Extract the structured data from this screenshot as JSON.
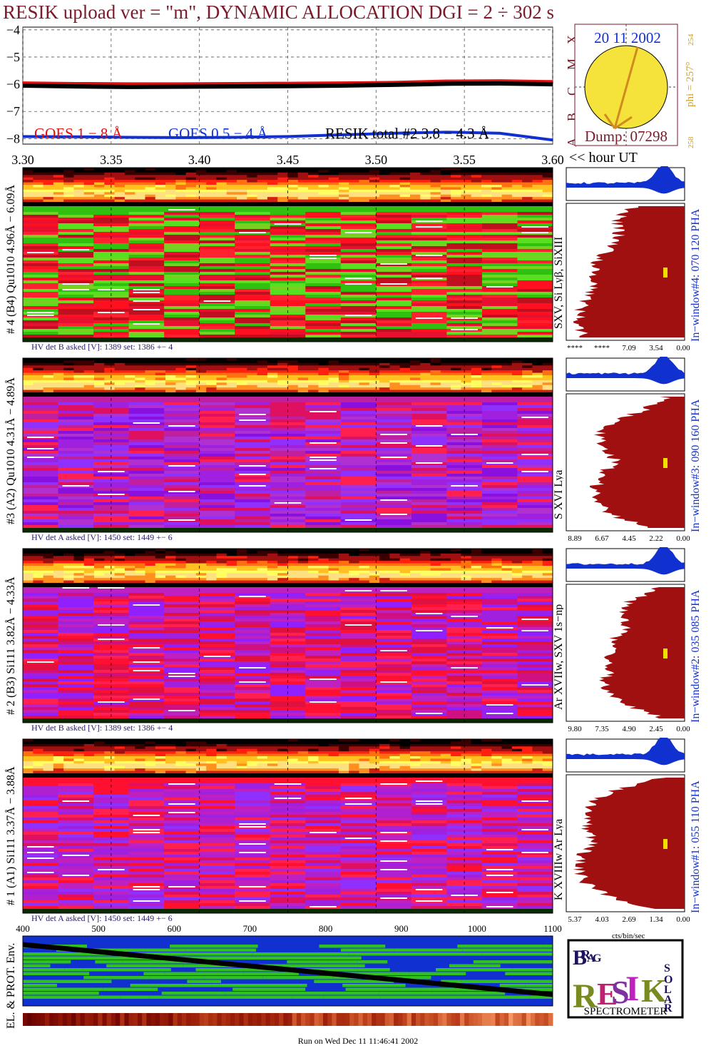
{
  "title": "RESIK upload ver = \"m\", DYNAMIC ALLOCATION  DGI =   2 ÷ 302 s",
  "colors": {
    "title": "#7a1a2a",
    "goes_long": "#e01010",
    "goes_short": "#1030d0",
    "resik_total": "#000000",
    "sun_disk": "#f5e23a",
    "sun_axis": "#d08a20",
    "hist_fill": "#a01010",
    "hist_top": "#1030d0",
    "date": "#1030d0",
    "marker": "#f0e000"
  },
  "lightcurve": {
    "y_ticks": [
      "−4",
      "−5",
      "−6",
      "−7",
      "−8"
    ],
    "x_ticks": [
      "3.30",
      "3.35",
      "3.40",
      "3.45",
      "3.50",
      "3.55",
      "3.60"
    ],
    "x_unit": "<< hour UT",
    "legend": {
      "goes_long": "GOES 1 − 8 Å",
      "goes_short": "GOES 0.5 − 4 Å",
      "resik_total": "RESIK total #2  3.8 − 4.3 Å"
    }
  },
  "goes_class_scale": [
    "A",
    "B",
    "C",
    "M",
    "X"
  ],
  "sun_panel": {
    "date": "20 11 2002",
    "dump": "Dump: 07298",
    "phi": "phi = 257°",
    "phi_top": "254",
    "phi_bottom": "258"
  },
  "channels": [
    {
      "label": "# 4 (B4) Qu1010 4.96Å − 6.09Å",
      "lines": "SXV, Si Lyβ, SiXIII",
      "window": "In−window#4:  070 120 PHA",
      "hv": "HV det B asked [V]:  1389 set:  1386 +−    4",
      "hist_ticks": [
        "****",
        "****",
        "7.09",
        "3.54",
        "0.00"
      ],
      "body_style": "green"
    },
    {
      "label": "#3 (A2) Qu1010  4.31Å − 4.89Å",
      "lines": "S XVI Lya",
      "window": "In−window#3:  090 160 PHA",
      "hv": "HV det A asked [V]:  1450 set:  1449 +−    6",
      "hist_ticks": [
        "8.89",
        "6.67",
        "4.45",
        "2.22",
        "0.00"
      ],
      "body_style": "violet"
    },
    {
      "label": "# 2 (B3) Si111  3.82Å − 4.33Å",
      "lines": "Ar XVIIw,  SXV 1s−np",
      "window": "In−window#2:  035 085 PHA",
      "hv": "HV det B asked [V]:  1389 set:  1386 +−    4",
      "hist_ticks": [
        "9.80",
        "7.35",
        "4.90",
        "2.45",
        "0.00"
      ],
      "body_style": "redviolet"
    },
    {
      "label": "# 1 (A1) Si111  3.37Å − 3.88Å",
      "lines": "K XVIIIw  Ar Lya",
      "window": "In−window#1:  055 110 PHA",
      "hv": "HV det A asked [V]:  1450 set:  1449 +−    6",
      "hist_ticks": [
        "5.37",
        "4.03",
        "2.69",
        "1.34",
        "0.00"
      ],
      "body_style": "redviolet2"
    }
  ],
  "hist_unit": "cts/bin/sec",
  "env": {
    "label": "EL. & PROT. Env.",
    "x_ticks": [
      "400",
      "500",
      "600",
      "700",
      "800",
      "900",
      "1000",
      "1100"
    ]
  },
  "logo": {
    "text": "SPECTROMETER",
    "letters": [
      "B",
      "R",
      "A",
      "G",
      "R",
      "E",
      "S",
      "I",
      "K",
      "S",
      "O",
      "L",
      "A",
      "R"
    ]
  },
  "footer": "Run on Wed Dec 11 11:46:41 2002",
  "chart_data": [
    {
      "type": "line",
      "title": "RESIK upload ver = \"m\", DYNAMIC ALLOCATION  DGI =   2 ÷ 302 s",
      "xlabel": "<< hour UT",
      "ylabel": "",
      "xlim": [
        3.3,
        3.6
      ],
      "ylim": [
        -8.2,
        -3.9
      ],
      "x": [
        3.3,
        3.33,
        3.36,
        3.39,
        3.42,
        3.45,
        3.48,
        3.51,
        3.54,
        3.57,
        3.6
      ],
      "series": [
        {
          "name": "GOES 1 − 8 Å",
          "values": [
            -5.95,
            -5.97,
            -5.98,
            -5.98,
            -5.97,
            -5.96,
            -5.95,
            -5.93,
            -5.88,
            -5.87,
            -5.9
          ]
        },
        {
          "name": "GOES 0.5 − 4 Å",
          "values": [
            -7.92,
            -7.93,
            -7.95,
            -7.96,
            -7.95,
            -7.92,
            -7.86,
            -7.8,
            -7.76,
            -7.8,
            -8.05
          ]
        },
        {
          "name": "RESIK total #2  3.8 − 4.3 Å",
          "values": [
            -6.05,
            -6.08,
            -6.1,
            -6.09,
            -6.08,
            -6.07,
            -6.05,
            -6.02,
            -5.98,
            -5.97,
            -6.0
          ]
        }
      ]
    },
    {
      "type": "area",
      "title": "In−window#4:  070 120 PHA",
      "xlabel": "",
      "ylabel": "",
      "xlim": [
        0,
        1
      ],
      "ylim": [
        0,
        1
      ],
      "x": [
        0.0,
        0.1,
        0.2,
        0.3,
        0.4,
        0.5,
        0.6,
        0.7,
        0.8,
        0.9,
        1.0
      ],
      "series": [
        {
          "values": [
            0.42,
            0.58,
            0.55,
            0.6,
            0.72,
            0.78,
            0.75,
            0.82,
            0.88,
            0.9,
            0.84
          ]
        }
      ]
    },
    {
      "type": "area",
      "title": "In−window#3:  090 160 PHA",
      "xlabel": "",
      "ylabel": "",
      "xlim": [
        0,
        1
      ],
      "ylim": [
        0,
        1
      ],
      "x": [
        0.0,
        0.1,
        0.2,
        0.3,
        0.4,
        0.5,
        0.6,
        0.7,
        0.8,
        0.9,
        1.0
      ],
      "series": [
        {
          "values": [
            0.15,
            0.35,
            0.62,
            0.74,
            0.65,
            0.58,
            0.72,
            0.75,
            0.76,
            0.62,
            0.3
          ]
        }
      ]
    },
    {
      "type": "area",
      "title": "In−window#2:  035 085 PHA",
      "xlabel": "",
      "ylabel": "",
      "xlim": [
        0,
        1
      ],
      "ylim": [
        0,
        1
      ],
      "x": [
        0.0,
        0.1,
        0.2,
        0.3,
        0.4,
        0.5,
        0.6,
        0.7,
        0.8,
        0.9,
        1.0
      ],
      "series": [
        {
          "values": [
            0.2,
            0.45,
            0.55,
            0.48,
            0.6,
            0.64,
            0.62,
            0.68,
            0.65,
            0.5,
            0.18
          ]
        }
      ]
    },
    {
      "type": "area",
      "title": "In−window#1:  055 110 PHA",
      "xlabel": "",
      "ylabel": "",
      "xlim": [
        0,
        1
      ],
      "ylim": [
        0,
        1
      ],
      "x": [
        0.0,
        0.1,
        0.2,
        0.3,
        0.4,
        0.5,
        0.6,
        0.7,
        0.8,
        0.9,
        1.0
      ],
      "series": [
        {
          "values": [
            0.2,
            0.6,
            0.8,
            0.84,
            0.82,
            0.78,
            0.88,
            0.9,
            0.85,
            0.64,
            0.3
          ]
        }
      ]
    }
  ]
}
